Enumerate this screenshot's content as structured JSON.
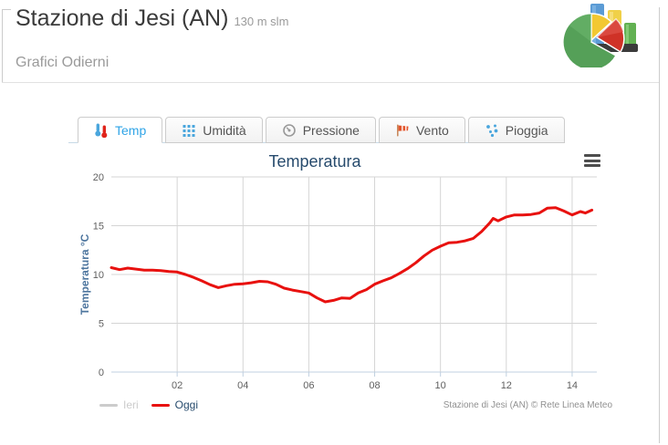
{
  "page": {
    "title": "Stazione di Jesi (AN)",
    "altitude": "130 m slm",
    "section_title": "Grafici Odierni"
  },
  "theme": {
    "accent_blue": "#2fa4e7",
    "icon_blue": "#4aa6dd",
    "icon_red": "#e0251b",
    "icon_orange": "#e2552c",
    "icon_gray": "#999999",
    "grid_color": "#d5d5d5",
    "axis_color": "#c0d0e0",
    "tick_label_color": "#606060",
    "axis_title_color": "#4d759e",
    "legend_text_color": "#274b6d"
  },
  "tabs": [
    {
      "label": "Temp",
      "icon": "thermometer-icon",
      "active": true
    },
    {
      "label": "Umidità",
      "icon": "humidity-grid-icon",
      "active": false
    },
    {
      "label": "Pressione",
      "icon": "gauge-icon",
      "active": false
    },
    {
      "label": "Vento",
      "icon": "windsock-icon",
      "active": false
    },
    {
      "label": "Pioggia",
      "icon": "raindrops-icon",
      "active": false
    }
  ],
  "chart_data": {
    "type": "line",
    "title": "Temperatura",
    "ylabel": "Temperatura °C",
    "ylim": [
      0,
      20
    ],
    "yticks": [
      0,
      5,
      10,
      15,
      20
    ],
    "xlim": [
      0,
      14.75
    ],
    "xticks": [
      2,
      4,
      6,
      8,
      10,
      12,
      14
    ],
    "xtick_labels": [
      "02",
      "04",
      "06",
      "08",
      "10",
      "12",
      "14"
    ],
    "grid": true,
    "legend_position": "bottom-left",
    "credits": "Stazione di Jesi (AN) © Rete Linea Meteo",
    "series": [
      {
        "name": "Ieri",
        "color": "#cccccc",
        "visible": false,
        "points": []
      },
      {
        "name": "Oggi",
        "color": "#e8110f",
        "visible": true,
        "points": [
          [
            0,
            10.7
          ],
          [
            0.25,
            10.5
          ],
          [
            0.5,
            10.65
          ],
          [
            0.75,
            10.55
          ],
          [
            1,
            10.45
          ],
          [
            1.25,
            10.45
          ],
          [
            1.5,
            10.4
          ],
          [
            1.75,
            10.3
          ],
          [
            2,
            10.25
          ],
          [
            2.25,
            10
          ],
          [
            2.5,
            9.7
          ],
          [
            2.75,
            9.35
          ],
          [
            3,
            8.95
          ],
          [
            3.25,
            8.65
          ],
          [
            3.5,
            8.85
          ],
          [
            3.75,
            9
          ],
          [
            4,
            9.05
          ],
          [
            4.25,
            9.15
          ],
          [
            4.5,
            9.3
          ],
          [
            4.75,
            9.25
          ],
          [
            5,
            9
          ],
          [
            5.25,
            8.6
          ],
          [
            5.5,
            8.4
          ],
          [
            5.75,
            8.25
          ],
          [
            6,
            8.1
          ],
          [
            6.25,
            7.6
          ],
          [
            6.5,
            7.2
          ],
          [
            6.75,
            7.35
          ],
          [
            7,
            7.6
          ],
          [
            7.25,
            7.55
          ],
          [
            7.5,
            8.1
          ],
          [
            7.75,
            8.45
          ],
          [
            8,
            9
          ],
          [
            8.25,
            9.35
          ],
          [
            8.5,
            9.65
          ],
          [
            8.75,
            10.1
          ],
          [
            9,
            10.6
          ],
          [
            9.25,
            11.2
          ],
          [
            9.5,
            11.9
          ],
          [
            9.75,
            12.5
          ],
          [
            10,
            12.9
          ],
          [
            10.25,
            13.25
          ],
          [
            10.5,
            13.3
          ],
          [
            10.75,
            13.45
          ],
          [
            11,
            13.7
          ],
          [
            11.25,
            14.4
          ],
          [
            11.5,
            15.3
          ],
          [
            11.6,
            15.75
          ],
          [
            11.75,
            15.5
          ],
          [
            12,
            15.9
          ],
          [
            12.25,
            16.1
          ],
          [
            12.5,
            16.1
          ],
          [
            12.75,
            16.15
          ],
          [
            13,
            16.3
          ],
          [
            13.25,
            16.8
          ],
          [
            13.5,
            16.85
          ],
          [
            13.75,
            16.5
          ],
          [
            14,
            16.1
          ],
          [
            14.25,
            16.45
          ],
          [
            14.4,
            16.3
          ],
          [
            14.6,
            16.6
          ]
        ]
      }
    ]
  }
}
